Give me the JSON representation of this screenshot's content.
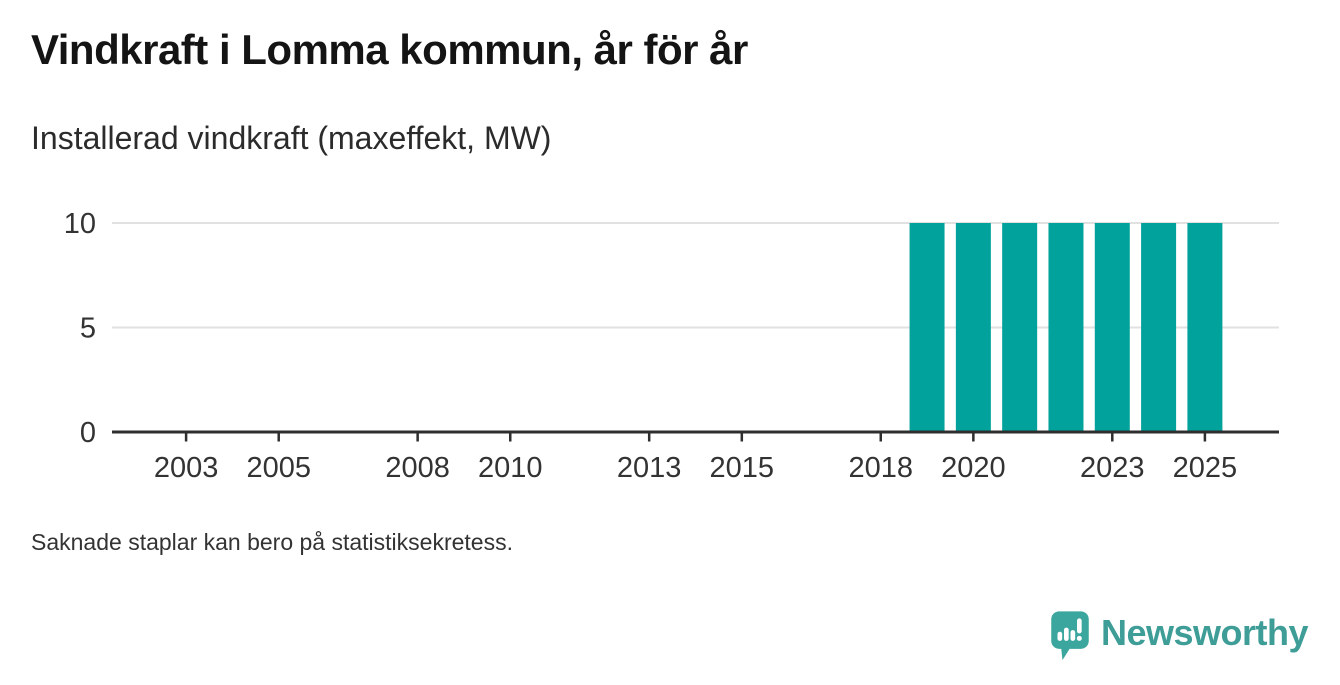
{
  "header": {
    "title": "Vindkraft i Lomma kommun, år för år",
    "subtitle": "Installerad vindkraft (maxeffekt, MW)"
  },
  "chart_data": {
    "type": "bar",
    "title": "Vindkraft i Lomma kommun, år för år",
    "subtitle": "Installerad vindkraft (maxeffekt, MW)",
    "x": [
      2019,
      2020,
      2021,
      2022,
      2023,
      2024,
      2025
    ],
    "values": [
      10,
      10,
      10,
      10,
      10,
      10,
      10
    ],
    "x_ticks": [
      2003,
      2005,
      2008,
      2010,
      2013,
      2015,
      2018,
      2020,
      2023,
      2025
    ],
    "y_ticks": [
      0,
      5,
      10
    ],
    "x_domain": [
      2001.4,
      2026.6
    ],
    "ylim": [
      0,
      10
    ],
    "grid": "horizontal",
    "legend": "none",
    "bar_color": "#00a29b",
    "grid_color": "#e1e1e1",
    "axis_color": "#2e2e2e",
    "tick_label_color": "#333333"
  },
  "footer": {
    "note": "Saknade staplar kan bero på statistiksekretess."
  },
  "branding": {
    "wordmark": "Newsworthy",
    "icon": "speech-bubble-bar-chart-icon",
    "brand_color": "#3e9d97",
    "icon_color": "#3ba69e"
  }
}
